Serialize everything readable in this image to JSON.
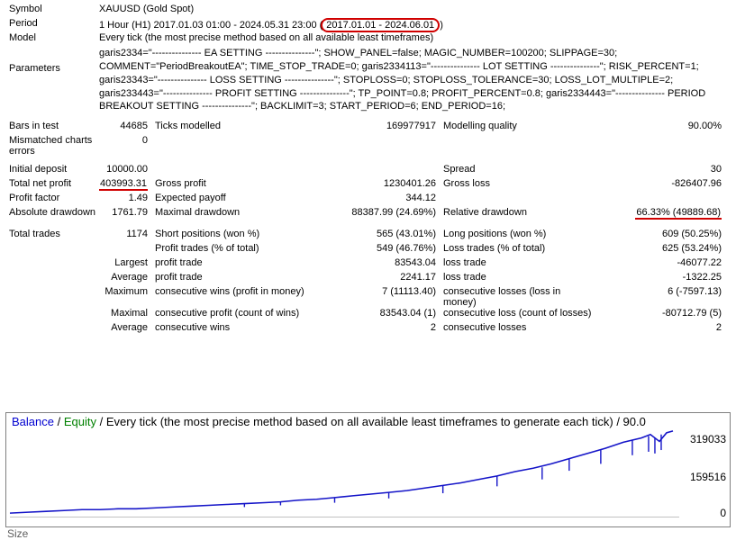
{
  "header": {
    "symbol_label": "Symbol",
    "symbol_value": "XAUUSD (Gold Spot)",
    "period_label": "Period",
    "period_prefix": "1 Hour (H1) 2017.01.03 01:00 - 2024.05.31 23:00 (",
    "period_oval": "2017.01.01 - 2024.06.01",
    "period_suffix": ")",
    "model_label": "Model",
    "model_value": "Every tick (the most precise method based on all available least timeframes)",
    "params_label": "Parameters",
    "params_value": "garis2334=\"--------------- EA SETTING ---------------\"; SHOW_PANEL=false; MAGIC_NUMBER=100200; SLIPPAGE=30; COMMENT=\"PeriodBreakoutEA\"; TIME_STOP_TRADE=0; garis2334113=\"--------------- LOT SETTING ---------------\"; RISK_PERCENT=1; garis23343=\"--------------- LOSS SETTING ---------------\"; STOPLOSS=0; STOPLOSS_TOLERANCE=30; LOSS_LOT_MULTIPLE=2; garis233443=\"--------------- PROFIT SETTING ---------------\"; TP_POINT=0.8; PROFIT_PERCENT=0.8; garis2334443=\"--------------- PERIOD BREAKOUT SETTING ---------------\"; BACKLIMIT=3; START_PERIOD=6; END_PERIOD=16;"
  },
  "bars": {
    "label": "Bars in test",
    "value": "44685",
    "ticks_label": "Ticks modelled",
    "ticks_value": "169977917",
    "quality_label": "Modelling quality",
    "quality_value": "90.00%"
  },
  "mismatch": {
    "label": "Mismatched charts errors",
    "value": "0"
  },
  "deposit": {
    "label": "Initial deposit",
    "value": "10000.00",
    "spread_label": "Spread",
    "spread_value": "30"
  },
  "netprofit": {
    "label": "Total net profit",
    "value": "403993.31",
    "gross_profit_label": "Gross profit",
    "gross_profit_value": "1230401.26",
    "gross_loss_label": "Gross loss",
    "gross_loss_value": "-826407.96"
  },
  "profitfactor": {
    "label": "Profit factor",
    "value": "1.49",
    "payoff_label": "Expected payoff",
    "payoff_value": "344.12"
  },
  "drawdown": {
    "label": "Absolute drawdown",
    "value": "1761.79",
    "max_label": "Maximal drawdown",
    "max_value": "88387.99 (24.69%)",
    "rel_label": "Relative drawdown",
    "rel_value": "66.33% (49889.68)"
  },
  "trades": {
    "label": "Total trades",
    "value": "1174",
    "short_label": "Short positions (won %)",
    "short_value": "565 (43.01%)",
    "long_label": "Long positions (won %)",
    "long_value": "609 (50.25%)"
  },
  "proftrades": {
    "label_b": "Profit trades (% of total)",
    "value_b": "549 (46.76%)",
    "label_c": "Loss trades (% of total)",
    "value_c": "625 (53.24%)"
  },
  "largest": {
    "label_a": "Largest",
    "label_b": "profit trade",
    "value_b": "83543.04",
    "label_c": "loss trade",
    "value_c": "-46077.22"
  },
  "average": {
    "label_a": "Average",
    "label_b": "profit trade",
    "value_b": "2241.17",
    "label_c": "loss trade",
    "value_c": "-1322.25"
  },
  "maxcons": {
    "label_a": "Maximum",
    "label_b": "consecutive wins (profit in money)",
    "value_b": "7 (11113.40)",
    "label_c": "consecutive losses (loss in money)",
    "value_c": "6 (-7597.13)"
  },
  "maximal": {
    "label_a": "Maximal",
    "label_b": "consecutive profit (count of wins)",
    "value_b": "83543.04 (1)",
    "label_c": "consecutive loss (count of losses)",
    "value_c": "-80712.79 (5)"
  },
  "avgcons": {
    "label_a": "Average",
    "label_b": "consecutive wins",
    "value_b": "2",
    "label_c": "consecutive losses",
    "value_c": "2"
  },
  "chart": {
    "title_balance": "Balance",
    "title_equity": "Equity",
    "title_rest": " / Every tick (the most precise method based on all available least timeframes to generate each tick) / 90.0",
    "y_ticks": [
      "319033",
      "159516",
      "0"
    ],
    "size_label": "Size",
    "balance_color": "#1414c8",
    "equity_color": "#008000",
    "grid_color": "#c0c0c0",
    "curve_points": [
      [
        0,
        97
      ],
      [
        20,
        96
      ],
      [
        40,
        95
      ],
      [
        60,
        94
      ],
      [
        80,
        93
      ],
      [
        100,
        93
      ],
      [
        120,
        92
      ],
      [
        140,
        92
      ],
      [
        160,
        91
      ],
      [
        180,
        90
      ],
      [
        200,
        89
      ],
      [
        220,
        88
      ],
      [
        240,
        87
      ],
      [
        260,
        86
      ],
      [
        280,
        85
      ],
      [
        300,
        84
      ],
      [
        320,
        82
      ],
      [
        340,
        81
      ],
      [
        360,
        79
      ],
      [
        380,
        77
      ],
      [
        400,
        75
      ],
      [
        420,
        73
      ],
      [
        440,
        71
      ],
      [
        460,
        68
      ],
      [
        480,
        65
      ],
      [
        500,
        62
      ],
      [
        520,
        58
      ],
      [
        540,
        54
      ],
      [
        560,
        49
      ],
      [
        580,
        45
      ],
      [
        600,
        40
      ],
      [
        620,
        34
      ],
      [
        640,
        28
      ],
      [
        660,
        22
      ],
      [
        680,
        15
      ],
      [
        700,
        10
      ],
      [
        710,
        6
      ],
      [
        720,
        14
      ],
      [
        728,
        4
      ],
      [
        735,
        2
      ]
    ],
    "spikes": [
      [
        260,
        86,
        90
      ],
      [
        300,
        84,
        88
      ],
      [
        360,
        79,
        85
      ],
      [
        420,
        73,
        80
      ],
      [
        480,
        65,
        74
      ],
      [
        540,
        54,
        66
      ],
      [
        590,
        44,
        58
      ],
      [
        620,
        34,
        48
      ],
      [
        655,
        24,
        40
      ],
      [
        690,
        12,
        30
      ],
      [
        708,
        8,
        26
      ],
      [
        715,
        10,
        28
      ],
      [
        722,
        6,
        24
      ]
    ]
  }
}
